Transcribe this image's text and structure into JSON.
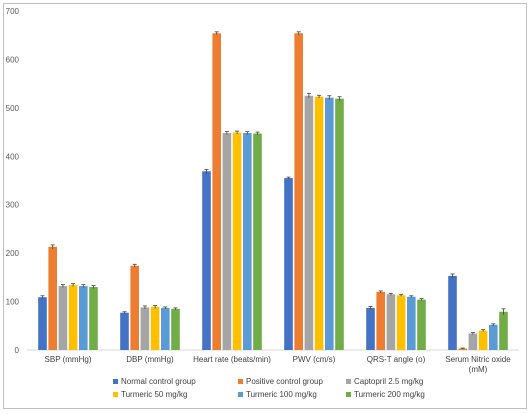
{
  "chart_data": {
    "type": "bar",
    "title": "",
    "xlabel": "",
    "ylabel": "",
    "ylim": [
      0,
      700
    ],
    "yticks": [
      "0",
      "100",
      "200",
      "300",
      "400",
      "500",
      "600",
      "700"
    ],
    "categories": [
      [
        "SBP (mmHg)"
      ],
      [
        "DBP (mmHg)"
      ],
      [
        "Heart rate (beats/min)"
      ],
      [
        "PWV (cm/s)"
      ],
      [
        "QRS-T angle (o)"
      ],
      [
        "Serum Nitric oxide",
        "(mM)"
      ]
    ],
    "grid": false,
    "legend_position": "bottom",
    "series": [
      {
        "name": "Normal control group",
        "color": "#4472C4",
        "values": [
          109,
          77,
          369,
          355,
          87,
          153
        ],
        "errors": [
          3,
          2,
          4,
          2,
          3,
          4
        ]
      },
      {
        "name": "Positive control group",
        "color": "#ED7D31",
        "values": [
          213,
          174,
          654,
          654,
          120,
          3
        ],
        "errors": [
          4,
          3,
          3,
          3,
          2,
          1
        ]
      },
      {
        "name": "Captopril 2.5 mg/kg",
        "color": "#A5A5A5",
        "values": [
          132,
          88,
          448,
          525,
          115,
          34
        ],
        "errors": [
          3,
          3,
          3,
          5,
          2,
          2
        ]
      },
      {
        "name": "Turmeric 50 mg/kg",
        "color": "#FFC000",
        "values": [
          134,
          89,
          449,
          523,
          113,
          40
        ],
        "errors": [
          3,
          3,
          3,
          3,
          2,
          2
        ]
      },
      {
        "name": "Turmeric 100 mg/kg",
        "color": "#5B9BD5",
        "values": [
          132,
          87,
          448,
          521,
          110,
          52
        ],
        "errors": [
          3,
          2,
          3,
          4,
          2,
          2
        ]
      },
      {
        "name": "Turmeric 200 mg/kg",
        "color": "#70AD47",
        "values": [
          130,
          85,
          447,
          519,
          104,
          79
        ],
        "errors": [
          3,
          2,
          3,
          4,
          2,
          6
        ]
      }
    ]
  }
}
